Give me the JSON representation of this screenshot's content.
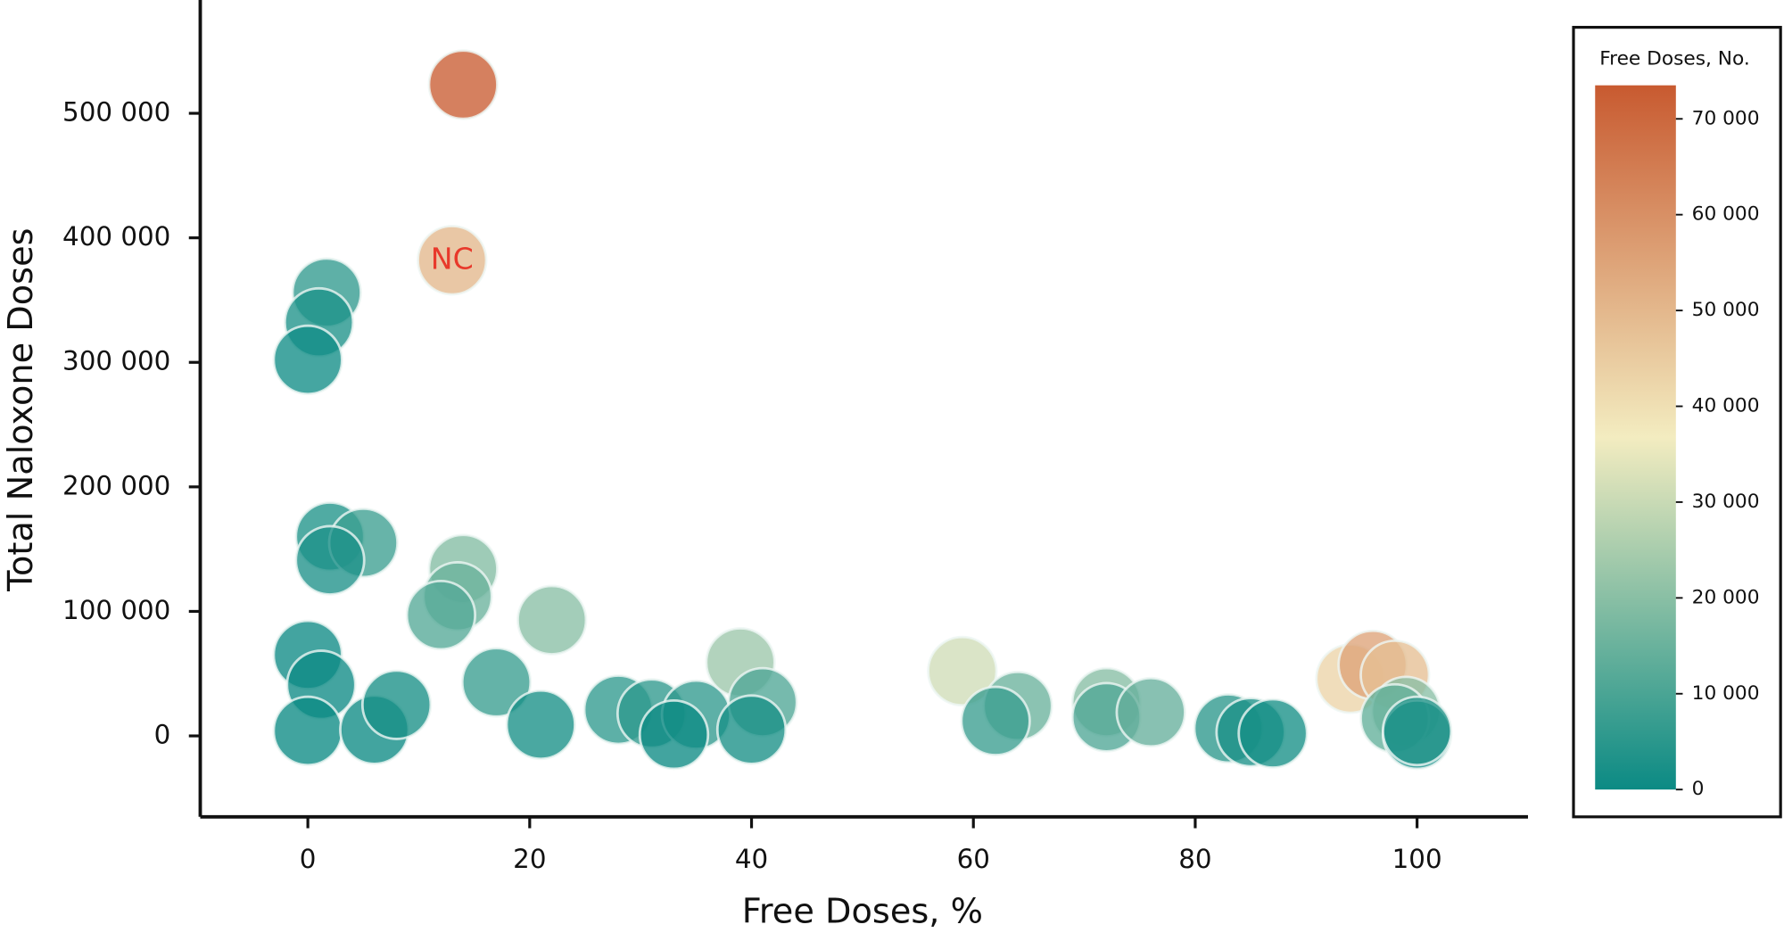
{
  "chart_data": {
    "type": "scatter",
    "x_label": "Free Doses, %",
    "y_label": "Total Naloxone Doses",
    "xlim": [
      -9.7,
      110
    ],
    "xticks": [
      0,
      20,
      40,
      60,
      80,
      100
    ],
    "ylim": [
      -65000,
      591000
    ],
    "yticks": [
      {
        "value": 0,
        "label": "0"
      },
      {
        "value": 100000,
        "label": "100 000"
      },
      {
        "value": 200000,
        "label": "200 000"
      },
      {
        "value": 300000,
        "label": "300 000"
      },
      {
        "value": 400000,
        "label": "400 000"
      },
      {
        "value": 500000,
        "label": "500 000"
      }
    ],
    "grid": false,
    "colorbar_title": "Free Doses, No.",
    "colorscale": [
      "#0b8a84",
      "#f3ecc0",
      "#c85a30"
    ],
    "clim": [
      0,
      73500
    ],
    "cticks": [
      {
        "value": 0,
        "label": "0"
      },
      {
        "value": 10000,
        "label": "10 000"
      },
      {
        "value": 20000,
        "label": "20 000"
      },
      {
        "value": 30000,
        "label": "30 000"
      },
      {
        "value": 40000,
        "label": "40 000"
      },
      {
        "value": 50000,
        "label": "50 000"
      },
      {
        "value": 60000,
        "label": "60 000"
      },
      {
        "value": 70000,
        "label": "70 000"
      }
    ],
    "x": [
      14,
      13,
      1.7,
      1,
      0,
      2,
      5,
      2,
      14,
      13.5,
      12,
      22,
      0,
      1.2,
      0,
      6,
      8,
      17,
      21,
      28,
      31,
      35,
      33,
      39,
      41,
      40,
      59,
      64,
      62,
      72,
      72,
      76,
      83,
      85,
      87,
      94,
      96,
      98,
      99,
      98,
      100,
      100
    ],
    "y": [
      523000,
      382000,
      356000,
      332000,
      302000,
      160000,
      155000,
      141000,
      134000,
      112000,
      97000,
      93000,
      65000,
      41000,
      4000,
      5000,
      25000,
      43000,
      9000,
      21000,
      18000,
      17000,
      1000,
      59000,
      27000,
      5000,
      52000,
      24000,
      12000,
      27000,
      15000,
      19000,
      6000,
      3000,
      2000,
      46000,
      57000,
      49000,
      20000,
      14000,
      1000,
      4000
    ],
    "c": [
      73000,
      50000,
      6000,
      3000,
      1000,
      3200,
      7700,
      2800,
      19000,
      15000,
      11600,
      20000,
      500,
      500,
      0,
      300,
      2000,
      7300,
      1900,
      5900,
      5600,
      6000,
      300,
      23000,
      11000,
      2000,
      31000,
      15000,
      7400,
      19500,
      10800,
      14400,
      5000,
      2500,
      1700,
      43000,
      55000,
      48000,
      20000,
      13700,
      1000,
      4000
    ],
    "annotations": [
      {
        "text": "NC",
        "x": 13,
        "y": 382000
      }
    ]
  }
}
